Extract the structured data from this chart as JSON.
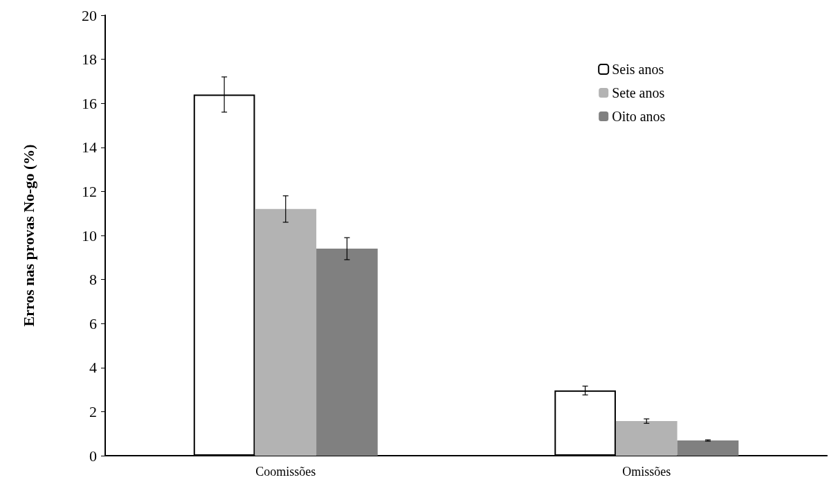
{
  "chart_data": {
    "type": "bar",
    "ylabel": "Erros nas provas No-go (%)",
    "categories": [
      "Coomissões",
      "Omissões"
    ],
    "series": [
      {
        "name": "Seis anos",
        "color": "#ffffff",
        "values": [
          16.4,
          2.96
        ],
        "errors": [
          0.8,
          0.2
        ]
      },
      {
        "name": "Sete anos",
        "color": "#b3b3b3",
        "values": [
          11.2,
          1.57
        ],
        "errors": [
          0.6,
          0.1
        ]
      },
      {
        "name": "Oito anos",
        "color": "#808080",
        "values": [
          9.4,
          0.69
        ],
        "errors": [
          0.5,
          0.03
        ]
      }
    ],
    "ylim": [
      0,
      20
    ],
    "yticks": [
      0,
      2,
      4,
      6,
      8,
      10,
      12,
      14,
      16,
      18,
      20
    ],
    "grid": false,
    "legend": "top right"
  }
}
